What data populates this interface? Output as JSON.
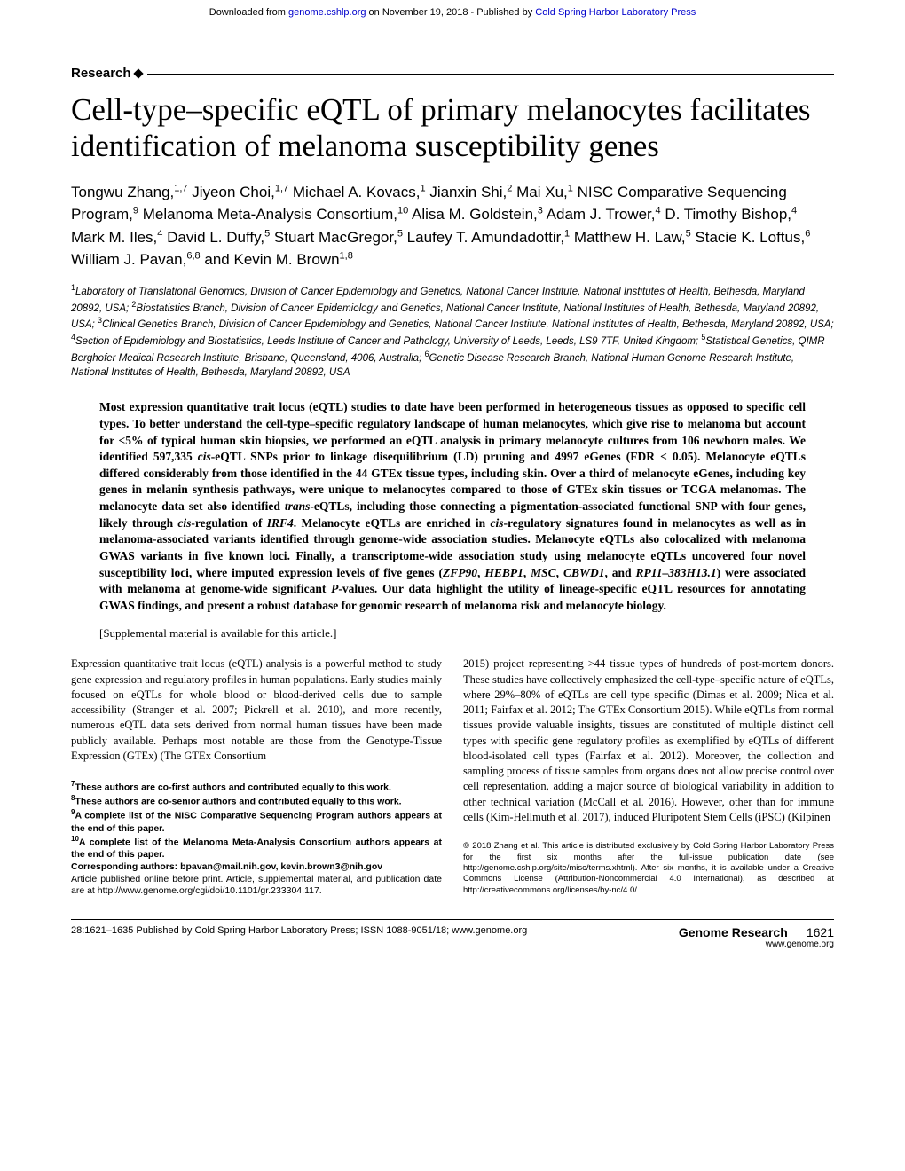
{
  "download_bar": {
    "prefix": "Downloaded from ",
    "link1": "genome.cshlp.org",
    "mid": " on November 19, 2018 - Published by ",
    "link2": "Cold Spring Harbor Laboratory Press"
  },
  "section_label": "Research",
  "title": "Cell-type–specific eQTL of primary melanocytes facilitates identification of melanoma susceptibility genes",
  "authors_html": "Tongwu Zhang,<sup>1,7</sup> Jiyeon Choi,<sup>1,7</sup> Michael A. Kovacs,<sup>1</sup> Jianxin Shi,<sup>2</sup> Mai Xu,<sup>1</sup> NISC Comparative Sequencing Program,<sup>9</sup> Melanoma Meta-Analysis Consortium,<sup>10</sup> Alisa M. Goldstein,<sup>3</sup> Adam J. Trower,<sup>4</sup> D. Timothy Bishop,<sup>4</sup> Mark M. Iles,<sup>4</sup> David L. Duffy,<sup>5</sup> Stuart MacGregor,<sup>5</sup> Laufey T. Amundadottir,<sup>1</sup> Matthew H. Law,<sup>5</sup> Stacie K. Loftus,<sup>6</sup> William J. Pavan,<sup>6,8</sup> and Kevin M. Brown<sup>1,8</sup>",
  "affiliations_html": "<sup>1</sup>Laboratory of Translational Genomics, Division of Cancer Epidemiology and Genetics, National Cancer Institute, National Institutes of Health, Bethesda, Maryland 20892, USA; <sup>2</sup>Biostatistics Branch, Division of Cancer Epidemiology and Genetics, National Cancer Institute, National Institutes of Health, Bethesda, Maryland 20892, USA; <sup>3</sup>Clinical Genetics Branch, Division of Cancer Epidemiology and Genetics, National Cancer Institute, National Institutes of Health, Bethesda, Maryland 20892, USA; <sup>4</sup>Section of Epidemiology and Biostatistics, Leeds Institute of Cancer and Pathology, University of Leeds, Leeds, LS9 7TF, United Kingdom; <sup>5</sup>Statistical Genetics, QIMR Berghofer Medical Research Institute, Brisbane, Queensland, 4006, Australia; <sup>6</sup>Genetic Disease Research Branch, National Human Genome Research Institute, National Institutes of Health, Bethesda, Maryland 20892, USA",
  "abstract_html": "Most expression quantitative trait locus (eQTL) studies to date have been performed in heterogeneous tissues as opposed to specific cell types. To better understand the cell-type–specific regulatory landscape of human melanocytes, which give rise to melanoma but account for &lt;5% of typical human skin biopsies, we performed an eQTL analysis in primary melanocyte cultures from 106 newborn males. We identified 597,335 <i>cis</i>-eQTL SNPs prior to linkage disequilibrium (LD) pruning and 4997 eGenes (FDR &lt; 0.05). Melanocyte eQTLs differed considerably from those identified in the 44 GTEx tissue types, including skin. Over a third of melanocyte eGenes, including key genes in melanin synthesis pathways, were unique to melanocytes compared to those of GTEx skin tissues or TCGA melanomas. The melanocyte data set also identified <i>trans</i>-eQTLs, including those connecting a pigmentation-associated functional SNP with four genes, likely through <i>cis</i>-regulation of <i>IRF4</i>. Melanocyte eQTLs are enriched in <i>cis</i>-regulatory signatures found in melanocytes as well as in melanoma-associated variants identified through genome-wide association studies. Melanocyte eQTLs also colocalized with melanoma GWAS variants in five known loci. Finally, a transcriptome-wide association study using melanocyte eQTLs uncovered four novel susceptibility loci, where imputed expression levels of five genes (<i>ZFP90</i>, <i>HEBP1</i>, <i>MSC</i>, <i>CBWD1</i>, and <i>RP11–383H13.1</i>) were associated with melanoma at genome-wide significant <i>P</i>-values. Our data highlight the utility of lineage-specific eQTL resources for annotating GWAS findings, and present a robust database for genomic research of melanoma risk and melanocyte biology.",
  "supplemental": "[Supplemental material is available for this article.]",
  "body": {
    "col1": "Expression quantitative trait locus (eQTL) analysis is a powerful method to study gene expression and regulatory profiles in human populations. Early studies mainly focused on eQTLs for whole blood or blood-derived cells due to sample accessibility (Stranger et al. 2007; Pickrell et al. 2010), and more recently, numerous eQTL data sets derived from normal human tissues have been made publicly available. Perhaps most notable are those from the Genotype-Tissue Expression (GTEx) (The GTEx Consortium",
    "col2": "2015) project representing >44 tissue types of hundreds of post-mortem donors. These studies have collectively emphasized the cell-type–specific nature of eQTLs, where 29%–80% of eQTLs are cell type specific (Dimas et al. 2009; Nica et al. 2011; Fairfax et al. 2012; The GTEx Consortium 2015). While eQTLs from normal tissues provide valuable insights, tissues are constituted of multiple distinct cell types with specific gene regulatory profiles as exemplified by eQTLs of different blood-isolated cell types (Fairfax et al. 2012). Moreover, the collection and sampling process of tissue samples from organs does not allow precise control over cell representation, adding a major source of biological variability in addition to other technical variation (McCall et al. 2016). However, other than for immune cells (Kim-Hellmuth et al. 2017), induced Pluripotent Stem Cells (iPSC) (Kilpinen"
  },
  "footnotes": {
    "n7": "These authors are co-first authors and contributed equally to this work.",
    "n8": "These authors are co-senior authors and contributed equally to this work.",
    "n9": "A complete list of the NISC Comparative Sequencing Program authors appears at the end of this paper.",
    "n10": "A complete list of the Melanoma Meta-Analysis Consortium authors appears at the end of this paper.",
    "corresponding_label": "Corresponding authors: ",
    "corresponding": "bpavan@mail.nih.gov, kevin.brown3@nih.gov",
    "article_info": "Article published online before print. Article, supplemental material, and publication date are at http://www.genome.org/cgi/doi/10.1101/gr.233304.117."
  },
  "copyright": "© 2018 Zhang et al.   This article is distributed exclusively by Cold Spring Harbor Laboratory Press for the first six months after the full-issue publication date (see http://genome.cshlp.org/site/misc/terms.xhtml). After six months, it is available under a Creative Commons License (Attribution-Noncommercial 4.0 International), as described at http://creativecommons.org/licenses/by-nc/4.0/.",
  "footer": {
    "left": "28:1621–1635 Published by Cold Spring Harbor Laboratory Press; ISSN 1088-9051/18; www.genome.org",
    "journal": "Genome Research",
    "pagenum": "1621",
    "url": "www.genome.org"
  },
  "colors": {
    "link": "#0000cc",
    "text": "#000000",
    "bg": "#ffffff"
  }
}
